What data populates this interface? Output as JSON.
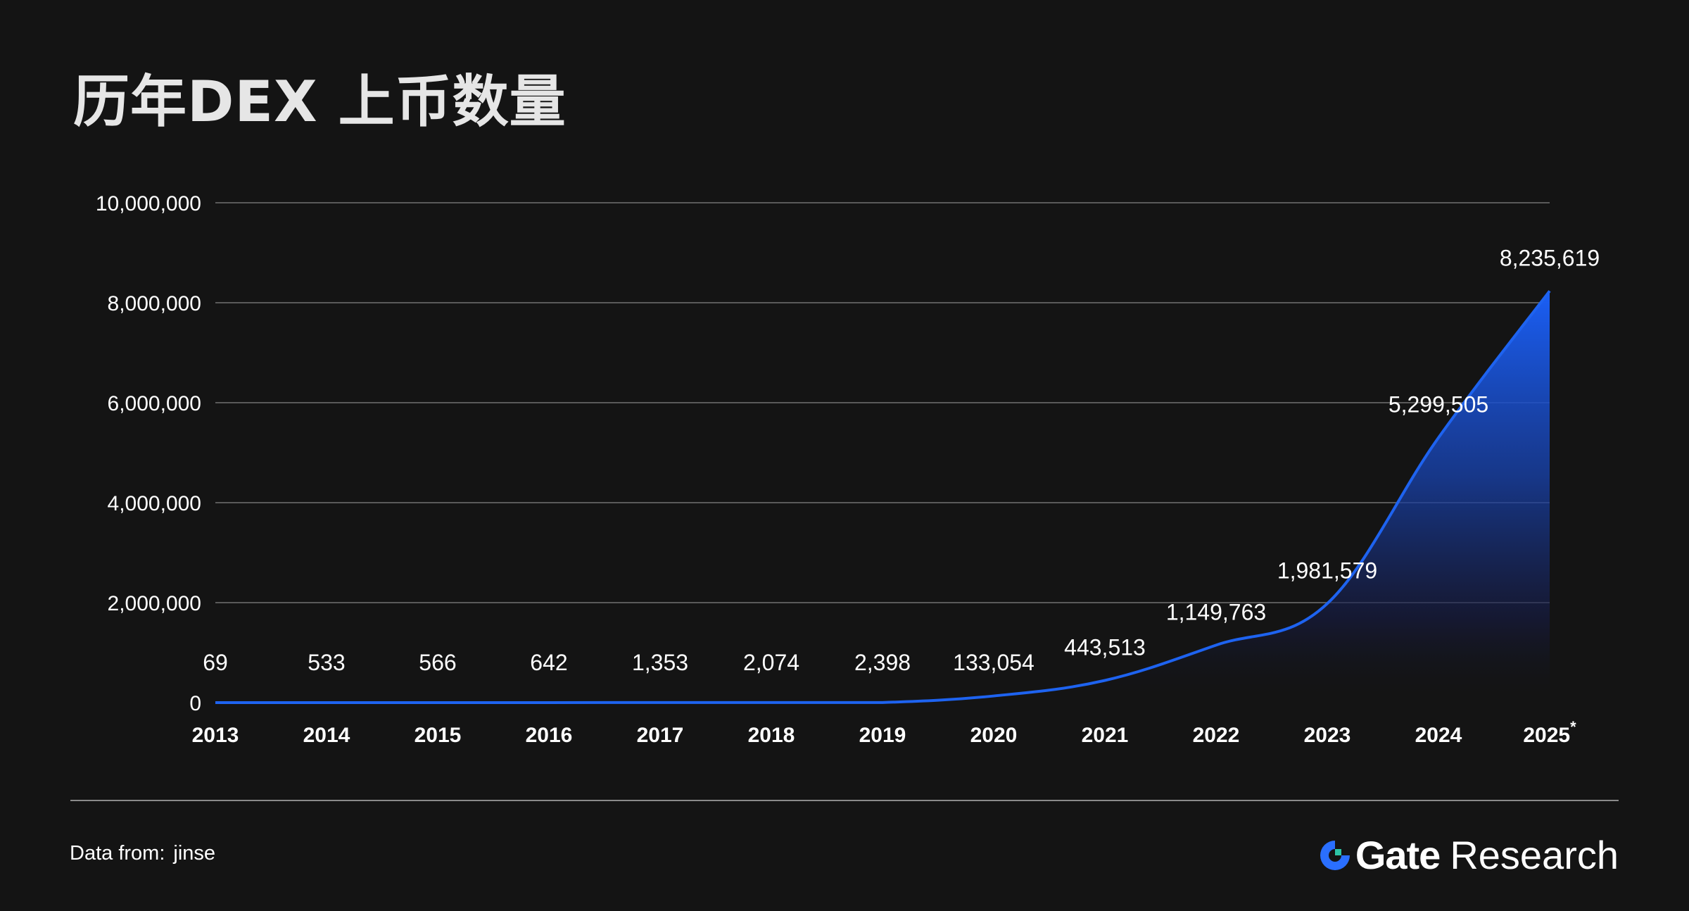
{
  "header": {
    "title": "历年DEX 上币数量"
  },
  "footer": {
    "source_label": "Data from:",
    "source_value": "jinse",
    "brand_name": "Gate",
    "brand_suffix": "Research",
    "brand_color": "#2a6fff"
  },
  "colors": {
    "line": "#1e63f0",
    "fill_top": "#1a5ff6",
    "grid": "#5a5a5a",
    "background": "#141414"
  },
  "chart_data": {
    "type": "area",
    "title": "历年DEX 上币数量",
    "xlabel": "",
    "ylabel": "",
    "x": [
      "2013",
      "2014",
      "2015",
      "2016",
      "2017",
      "2018",
      "2019",
      "2020",
      "2021",
      "2022",
      "2023",
      "2024",
      "2025*"
    ],
    "values": [
      69,
      533,
      566,
      642,
      1353,
      2074,
      2398,
      133054,
      443513,
      1149763,
      1981579,
      5299505,
      8235619
    ],
    "data_labels": [
      "69",
      "533",
      "566",
      "642",
      "1,353",
      "2,074",
      "2,398",
      "133,054",
      "443,513",
      "1,149,763",
      "1,981,579",
      "5,299,505",
      "8,235,619"
    ],
    "ylim": [
      0,
      10000000
    ],
    "yticks": [
      0,
      2000000,
      4000000,
      6000000,
      8000000,
      10000000
    ],
    "ytick_labels": [
      "0",
      "2,000,000",
      "4,000,000",
      "6,000,000",
      "8,000,000",
      "10,000,000"
    ],
    "grid": true,
    "legend": "none"
  }
}
